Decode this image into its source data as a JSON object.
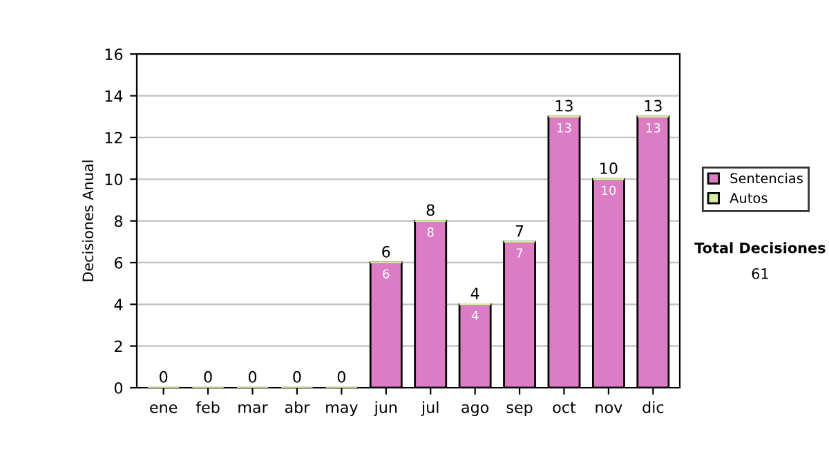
{
  "chart_data": {
    "type": "bar",
    "stacked": true,
    "ylabel": "Decisiones Anual",
    "categories": [
      "ene",
      "feb",
      "mar",
      "abr",
      "may",
      "jun",
      "jul",
      "ago",
      "sep",
      "oct",
      "nov",
      "dic"
    ],
    "series": [
      {
        "name": "Sentencias",
        "color": "#dc7cc4",
        "values": [
          0,
          0,
          0,
          0,
          0,
          6,
          8,
          4,
          7,
          13,
          10,
          13
        ],
        "value_labels": [
          null,
          null,
          null,
          null,
          null,
          "6",
          "8",
          "4",
          "7",
          "13",
          "10",
          "13"
        ]
      },
      {
        "name": "Autos",
        "color": "#d8eca0",
        "values": [
          0,
          0,
          0,
          0,
          0,
          0,
          0,
          0,
          0,
          0,
          0,
          0
        ]
      }
    ],
    "totals": [
      "0",
      "0",
      "0",
      "0",
      "0",
      "6",
      "8",
      "4",
      "7",
      "13",
      "10",
      "13"
    ],
    "ylim": [
      0,
      16
    ],
    "yticks": [
      0,
      2,
      4,
      6,
      8,
      10,
      12,
      14,
      16
    ],
    "grid": "y",
    "legend": "right",
    "annotations": [
      "Total Decisiones",
      "61"
    ]
  }
}
